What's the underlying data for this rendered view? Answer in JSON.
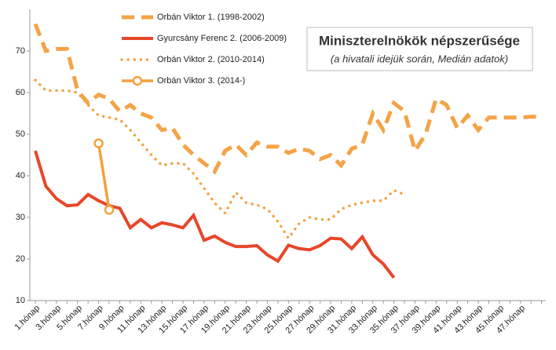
{
  "chart_data": {
    "type": "line",
    "title": "Miniszterelnökök  népszerűsége",
    "subtitle": "(a hivatali idejük során, Medián adatok)",
    "categories": [
      "1.hónap",
      null,
      "3.hónap",
      null,
      "5.hónap",
      null,
      "7.hónap",
      null,
      "9.hónap",
      null,
      "11.hónap",
      null,
      "13.hónap",
      null,
      "15.hónap",
      null,
      "17.hónap",
      null,
      "19.hónap",
      null,
      "21.hónap",
      null,
      "23.hónap",
      null,
      "25.hónap",
      null,
      "27.hónap",
      null,
      "29.hónap",
      null,
      "31.hónap",
      null,
      "33.hónap",
      null,
      "35.hónap",
      null,
      "37.hónap",
      null,
      "39.hónap",
      null,
      "41.hónap",
      null,
      "43.hónap",
      null,
      "45.hónap",
      null,
      "47.hónap",
      null,
      null
    ],
    "ylim": [
      10,
      80
    ],
    "yticks": [
      10,
      20,
      30,
      40,
      50,
      60,
      70
    ],
    "series": [
      {
        "name": "Orbán Viktor 1. (1998-2002)",
        "color": "#f4a346",
        "dash": "dashed",
        "values": [
          76.5,
          70,
          70.5,
          70.5,
          60.5,
          57.5,
          59.5,
          58.5,
          55.5,
          57,
          55,
          54,
          51,
          51.5,
          47.5,
          45,
          43,
          41,
          46,
          47.5,
          45,
          48,
          47,
          47,
          45.5,
          46.5,
          46,
          44,
          45,
          42.5,
          46.5,
          47.5,
          55,
          51,
          57.5,
          55.5,
          46,
          50,
          58.5,
          57,
          51.5,
          54.5,
          51,
          54,
          54,
          54,
          54,
          54.2,
          54.2
        ]
      },
      {
        "name": "Gyurcsány Ferenc 2. (2006-2009)",
        "color": "#e8462a",
        "dash": "solid",
        "values": [
          46,
          37.5,
          34.5,
          32.8,
          33,
          35.5,
          34,
          32.8,
          32.2,
          27.5,
          29.5,
          27.5,
          28.7,
          28.2,
          27.5,
          30.5,
          24.5,
          25.5,
          24,
          23,
          23,
          23.2,
          21,
          19.5,
          23.3,
          22.5,
          22.2,
          23.2,
          25,
          24.8,
          22.5,
          25.3,
          21,
          18.8,
          15.5,
          null,
          null,
          null,
          null,
          null,
          null,
          null,
          null,
          null,
          null,
          null,
          null,
          null,
          null
        ]
      },
      {
        "name": "Orbán Viktor 2. (2010-2014)",
        "color": "#f4a346",
        "dash": "dotted",
        "values": [
          63,
          60.5,
          60.5,
          60.5,
          60,
          57,
          54.5,
          54,
          53.5,
          51,
          48,
          45,
          42.5,
          43,
          43,
          40.5,
          37,
          33.5,
          31,
          36,
          33.5,
          33,
          32,
          29,
          25,
          28.5,
          30,
          29.5,
          29.5,
          32,
          33,
          33.5,
          34,
          34,
          36.5,
          35.5,
          null,
          null,
          null,
          null,
          null,
          null,
          null,
          null,
          null,
          null,
          null,
          null,
          null
        ]
      },
      {
        "name": "Orbán Viktor 3. (2014-)",
        "color": "#f2a23e",
        "dash": "marker",
        "values": [
          null,
          null,
          null,
          null,
          null,
          null,
          47.8,
          31.8,
          null,
          null,
          null,
          null,
          null,
          null,
          null,
          null,
          null,
          null,
          null,
          null,
          null,
          null,
          null,
          null,
          null,
          null,
          null,
          null,
          null,
          null,
          null,
          null,
          null,
          null,
          null,
          null,
          null,
          null,
          null,
          null,
          null,
          null,
          null,
          null,
          null,
          null,
          null,
          null,
          null
        ]
      }
    ]
  }
}
